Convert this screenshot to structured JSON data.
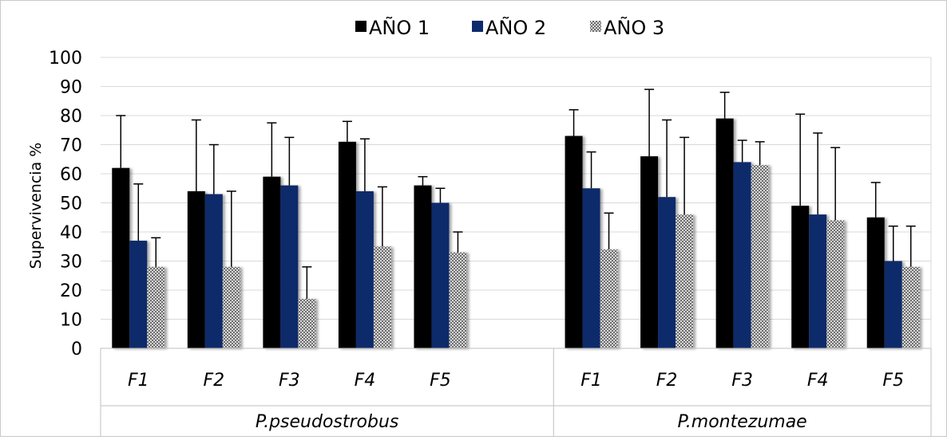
{
  "chart_data": {
    "type": "bar",
    "title": "",
    "xlabel": "",
    "ylabel": "Supervivencia %",
    "ylim": [
      0,
      100
    ],
    "yticks": [
      0,
      10,
      20,
      30,
      40,
      50,
      60,
      70,
      80,
      90,
      100
    ],
    "grid": true,
    "legend_position": "top",
    "groups": [
      {
        "name": "P.pseudostrobus",
        "categories": [
          "F1",
          "F2",
          "F3",
          "F4",
          "F5"
        ]
      },
      {
        "name": "P.montezumae",
        "categories": [
          "F1",
          "F2",
          "F3",
          "F4",
          "F5"
        ]
      }
    ],
    "series": [
      {
        "name": "AÑO 1",
        "color": "#000000",
        "values": [
          62,
          54,
          59,
          71,
          56,
          73,
          66,
          79,
          49,
          45
        ],
        "error_upper": [
          80,
          78.5,
          77.5,
          78,
          59,
          82,
          89,
          88,
          80.5,
          57
        ]
      },
      {
        "name": "AÑO 2",
        "color": "#0d2a6b",
        "values": [
          37,
          53,
          56,
          54,
          50,
          55,
          52,
          64,
          46,
          30
        ],
        "error_upper": [
          56.5,
          70,
          72.5,
          72,
          55,
          67.5,
          78.5,
          71.5,
          74,
          42
        ]
      },
      {
        "name": "AÑO 3",
        "color": "#9a9a9a",
        "pattern": "checker",
        "values": [
          28,
          28,
          17,
          35,
          33,
          34,
          46,
          63,
          44,
          28
        ],
        "error_upper": [
          38,
          54,
          28,
          55.5,
          40,
          46.5,
          72.5,
          71,
          69,
          42
        ]
      }
    ]
  }
}
